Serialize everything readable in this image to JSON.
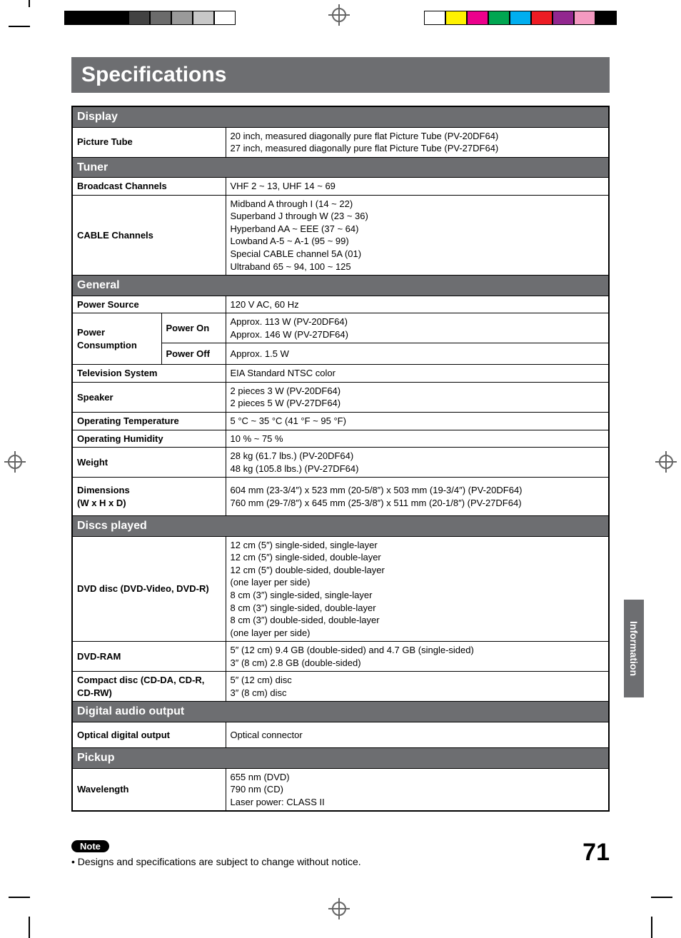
{
  "title": "Specifications",
  "side_tab": "Information",
  "page_number": "71",
  "note_label": "Note",
  "note_text": "• Designs and specifications are subject to change without notice.",
  "reg_gray_colors": [
    "#000000",
    "#000000",
    "#000000",
    "#424242",
    "#6b6b6b",
    "#9a9a9a",
    "#c8c8c8",
    "#ffffff"
  ],
  "reg_color_colors": [
    "#ffffff",
    "#fff200",
    "#ec008c",
    "#00a651",
    "#00aeef",
    "#ed1c24",
    "#92278f",
    "#f49ac1",
    "#000000"
  ],
  "sections": {
    "display": {
      "header": "Display",
      "rows": [
        {
          "label": "Picture Tube",
          "value": "20 inch, measured diagonally pure flat Picture Tube (PV-20DF64)\n27 inch, measured diagonally pure flat Picture Tube (PV-27DF64)"
        }
      ]
    },
    "tuner": {
      "header": "Tuner",
      "rows": [
        {
          "label": "Broadcast Channels",
          "value": "VHF 2 ~ 13, UHF 14 ~ 69"
        },
        {
          "label": "CABLE Channels",
          "value": "Midband A through I (14 ~ 22)\nSuperband J through W (23 ~ 36)\nHyperband AA ~ EEE (37 ~ 64)\nLowband A-5 ~ A-1 (95 ~ 99)\nSpecial CABLE channel 5A (01)\nUltraband 65 ~ 94, 100 ~ 125"
        }
      ]
    },
    "general": {
      "header": "General",
      "power_source": {
        "label": "Power Source",
        "value": "120 V AC, 60 Hz"
      },
      "power_consumption": {
        "label": "Power Consumption",
        "on_label": "Power On",
        "on_value": "Approx. 113 W (PV-20DF64)\nApprox. 146 W (PV-27DF64)",
        "off_label": "Power Off",
        "off_value": "Approx. 1.5 W"
      },
      "rows": [
        {
          "label": "Television System",
          "value": "EIA Standard NTSC color"
        },
        {
          "label": "Speaker",
          "value": "2 pieces 3 W (PV-20DF64)\n2 pieces 5 W (PV-27DF64)"
        },
        {
          "label": "Operating Temperature",
          "value": "5 °C ~ 35 °C (41 °F ~ 95 °F)"
        },
        {
          "label": "Operating Humidity",
          "value": "10 % ~ 75 %"
        },
        {
          "label": "Weight",
          "value": "28 kg (61.7 lbs.) (PV-20DF64)\n48 kg (105.8 lbs.) (PV-27DF64)"
        },
        {
          "label": "Dimensions\n(W x H x D)",
          "value": "604 mm (23-3/4″) x 523 mm (20-5/8″) x 503 mm (19-3/4″) (PV-20DF64)\n760 mm (29-7/8″) x 645 mm (25-3/8″) x 511 mm (20-1/8″) (PV-27DF64)",
          "tall": true
        }
      ]
    },
    "discs": {
      "header": "Discs played",
      "rows": [
        {
          "label": "DVD disc (DVD-Video, DVD-R)",
          "value": "12 cm (5″) single-sided, single-layer\n12 cm (5″) single-sided, double-layer\n12 cm (5″) double-sided, double-layer\n(one layer per side)\n8 cm (3″) single-sided, single-layer\n8 cm (3″) single-sided, double-layer\n8 cm (3″) double-sided, double-layer\n(one layer per side)"
        },
        {
          "label": "DVD-RAM",
          "value": "5″ (12 cm) 9.4 GB (double-sided) and 4.7 GB (single-sided)\n3″ (8 cm) 2.8 GB (double-sided)"
        },
        {
          "label": "Compact disc (CD-DA, CD-R, CD-RW)",
          "value": "5″ (12 cm) disc\n3″ (8 cm) disc"
        }
      ]
    },
    "digital_audio": {
      "header": "Digital audio output",
      "rows": [
        {
          "label": "Optical digital output",
          "value": "Optical connector"
        }
      ]
    },
    "pickup": {
      "header": "Pickup",
      "rows": [
        {
          "label": "Wavelength",
          "value": "655 nm (DVD)\n790 nm (CD)\nLaser power: CLASS II"
        }
      ]
    }
  }
}
